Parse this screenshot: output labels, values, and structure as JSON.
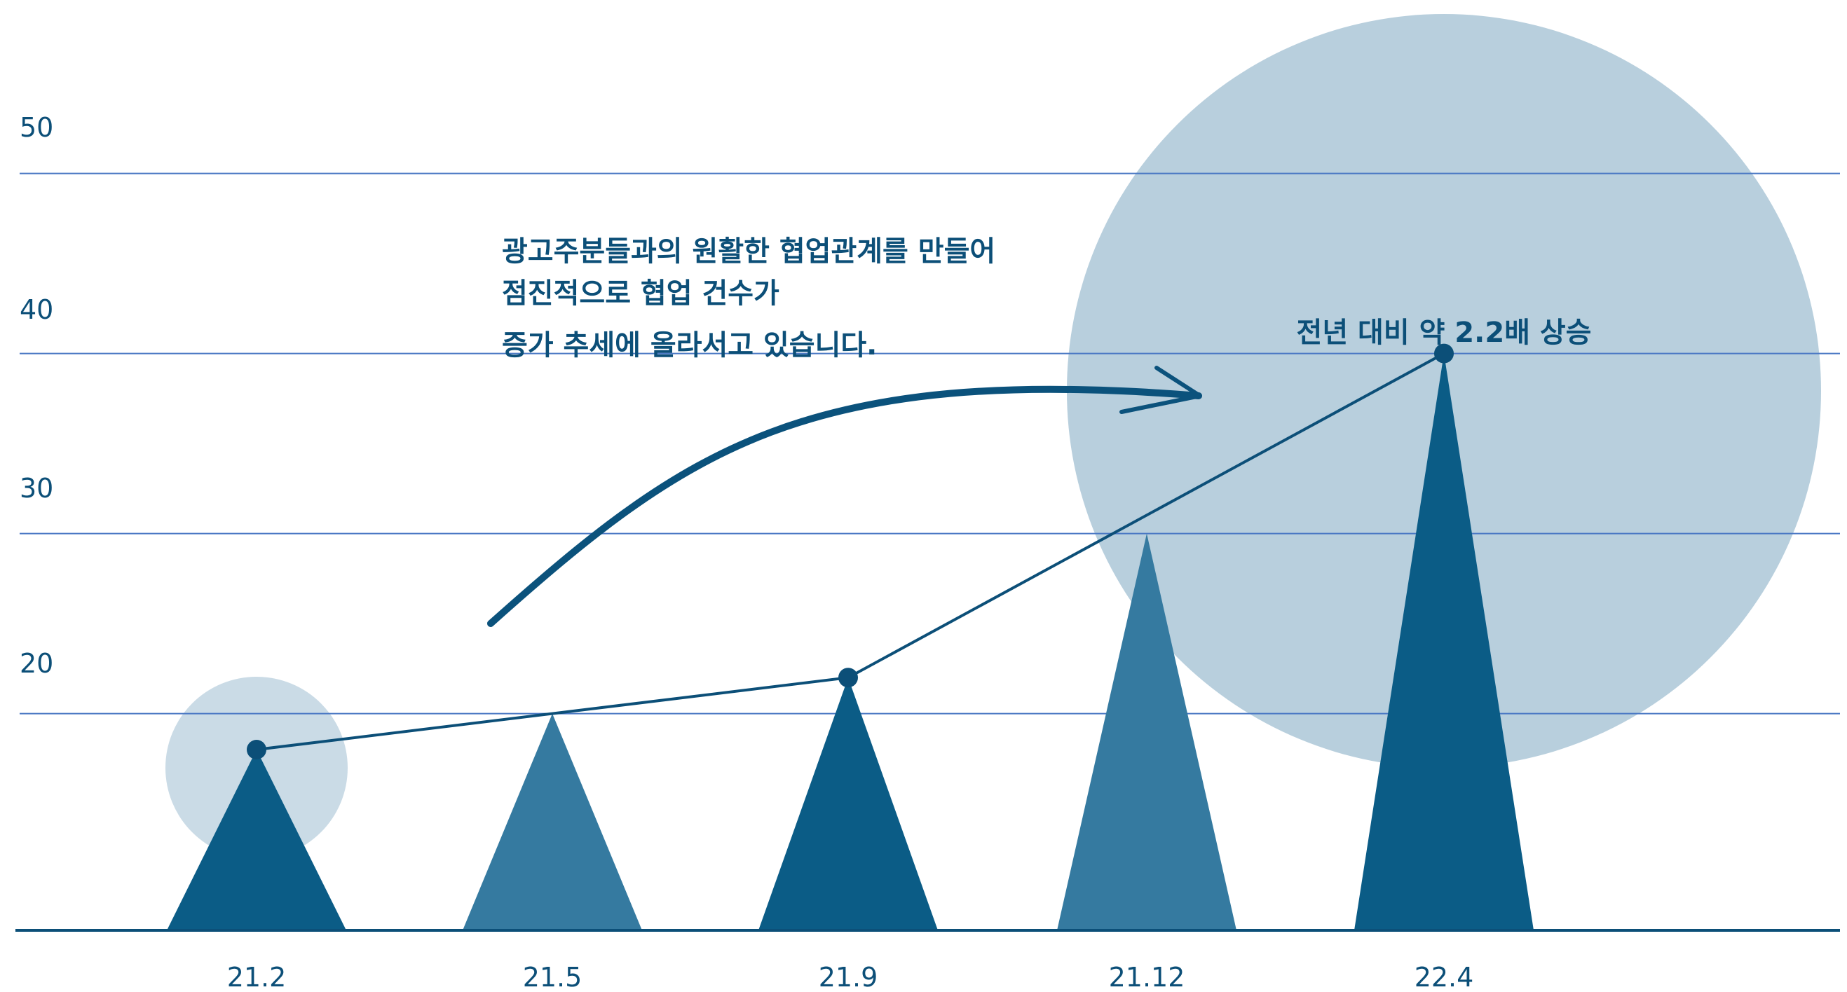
{
  "chart_data": {
    "type": "line",
    "categories": [
      "21.2",
      "21.5",
      "21.9",
      "21.12",
      "22.4"
    ],
    "values": [
      15,
      17,
      19,
      27,
      37
    ],
    "yticks": [
      20,
      30,
      40,
      50
    ],
    "ylim": [
      10,
      55
    ],
    "grid": true,
    "annotation_lines": [
      "광고주분들과의 원활한 협업관계를 만들어",
      "점진적으로 협업 건수가",
      "증가 추세에 올라서고 있습니다."
    ],
    "callout": "전년 대비 약 2.2배 상승"
  },
  "colors": {
    "axis_text": "#0c4f78",
    "gridline": "#4a78c4",
    "triangle_dark": "#0b5c86",
    "triangle_light": "#357aa0",
    "line": "#0c4f78",
    "bubble": "#b5cedd",
    "baseline": "#0c4f78"
  }
}
